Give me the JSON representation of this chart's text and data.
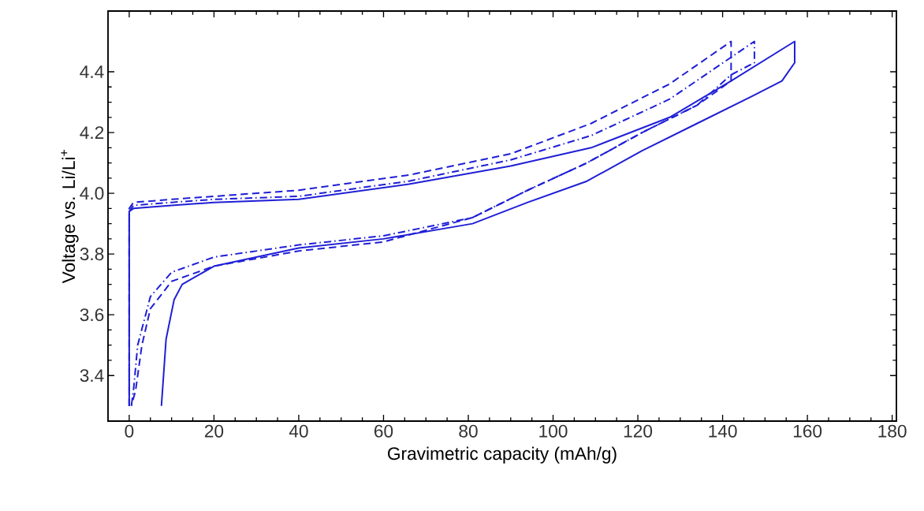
{
  "chart_data": {
    "type": "line",
    "xlabel": "Gravimetric capacity (mAh/g)",
    "ylabel": "Voltage vs. Li/Li$^{+}$",
    "xlim": [
      -5,
      181
    ],
    "ylim": [
      3.25,
      4.6
    ],
    "xticks": [
      0,
      20,
      40,
      60,
      80,
      100,
      120,
      140,
      160,
      180
    ],
    "yticks": [
      3.4,
      3.6,
      3.8,
      {
        "value": 4.0,
        "label": "4.0"
      },
      4.2,
      4.4
    ],
    "grid": false,
    "legend": false,
    "marker": "none",
    "series": [
      {
        "color": "#1f1fd6",
        "line_style": "solid",
        "x": [
          0,
          0,
          1,
          10,
          20,
          40,
          66,
          90,
          109,
          127.5,
          142,
          157,
          157,
          154,
          147,
          134,
          121,
          108,
          94,
          81,
          60,
          40,
          20,
          15,
          12.5,
          10.6,
          8.7,
          7.6
        ],
        "values": [
          3.3,
          3.94,
          3.95,
          3.96,
          3.97,
          3.98,
          4.03,
          4.09,
          4.15,
          4.25,
          4.37,
          4.5,
          4.43,
          4.37,
          4.32,
          4.23,
          4.14,
          4.04,
          3.97,
          3.9,
          3.85,
          3.82,
          3.76,
          3.72,
          3.7,
          3.65,
          3.52,
          3.3
        ]
      },
      {
        "color": "#1f1fd6",
        "line_style": "dashed",
        "x": [
          0,
          0,
          1,
          10,
          20,
          40,
          66,
          90,
          109,
          127.5,
          142,
          142,
          134,
          121,
          108,
          94,
          81,
          60,
          40,
          20,
          10,
          5,
          3,
          1.5,
          0.5
        ],
        "values": [
          3.3,
          3.95,
          3.97,
          3.98,
          3.99,
          4.01,
          4.06,
          4.13,
          4.23,
          4.36,
          4.5,
          4.37,
          4.29,
          4.2,
          4.1,
          4.01,
          3.92,
          3.84,
          3.81,
          3.76,
          3.71,
          3.62,
          3.5,
          3.35,
          3.3
        ]
      },
      {
        "color": "#1f1fd6",
        "line_style": "dashdot",
        "x": [
          0,
          0,
          1,
          10,
          20,
          40,
          66,
          90,
          109,
          127.5,
          147.5,
          147.5,
          142,
          134,
          121,
          108,
          94,
          81,
          60,
          40,
          20,
          10,
          5,
          2,
          1,
          0.5
        ],
        "values": [
          3.3,
          3.94,
          3.96,
          3.97,
          3.98,
          3.99,
          4.04,
          4.11,
          4.19,
          4.31,
          4.5,
          4.43,
          4.39,
          4.29,
          4.2,
          4.1,
          4.01,
          3.92,
          3.86,
          3.83,
          3.79,
          3.74,
          3.66,
          3.5,
          3.35,
          3.3
        ]
      }
    ]
  }
}
